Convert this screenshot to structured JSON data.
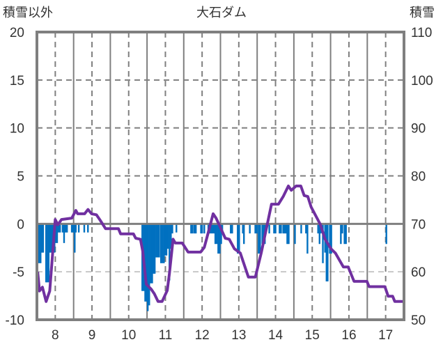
{
  "chart_data": {
    "type": "bar+line",
    "title": "大石ダム",
    "ylabel_left": "積雪以外",
    "ylabel_right": "積雪",
    "xlim": [
      7.5,
      17.5
    ],
    "x_ticks": [
      "8",
      "9",
      "10",
      "11",
      "12",
      "13",
      "14",
      "15",
      "16",
      "17"
    ],
    "x_tick_values": [
      8,
      9,
      10,
      11,
      12,
      13,
      14,
      15,
      16,
      17
    ],
    "ylim_left": [
      -10,
      20
    ],
    "y_ticks_left": [
      "20",
      "15",
      "10",
      "5",
      "0",
      "-5",
      "-10"
    ],
    "y_tick_values_left": [
      20,
      15,
      10,
      5,
      0,
      -5,
      -10
    ],
    "ylim_right": [
      50,
      110
    ],
    "y_ticks_right": [
      "110",
      "100",
      "90",
      "80",
      "70",
      "60",
      "50"
    ],
    "y_tick_values_right": [
      110,
      100,
      90,
      80,
      70,
      60,
      50
    ],
    "grid": true,
    "colors": {
      "bars": "#0070c0",
      "line": "#7030a0",
      "frame": "#7f7f7f"
    },
    "series": [
      {
        "name": "積雪以外",
        "type": "bar",
        "axis": "left",
        "points": [
          [
            7.52,
            -3
          ],
          [
            7.56,
            -4.1
          ],
          [
            7.6,
            -4.1
          ],
          [
            7.63,
            -3
          ],
          [
            7.67,
            -3
          ],
          [
            7.75,
            -6.1
          ],
          [
            7.78,
            -6.1
          ],
          [
            7.82,
            -6.1
          ],
          [
            7.86,
            -3
          ],
          [
            7.9,
            -3
          ],
          [
            7.94,
            -3
          ],
          [
            7.98,
            -3
          ],
          [
            8.01,
            -2
          ],
          [
            8.05,
            -2
          ],
          [
            8.09,
            -0.9
          ],
          [
            8.13,
            -0.9
          ],
          [
            8.2,
            -0.9
          ],
          [
            8.24,
            -2
          ],
          [
            8.28,
            -0.9
          ],
          [
            8.32,
            -0.9
          ],
          [
            8.45,
            -0.9
          ],
          [
            8.49,
            -0.9
          ],
          [
            8.53,
            -3
          ],
          [
            8.56,
            -0.9
          ],
          [
            8.64,
            -0.9
          ],
          [
            8.79,
            -0.9
          ],
          [
            8.89,
            -0.9
          ],
          [
            10.37,
            -7
          ],
          [
            10.41,
            -7
          ],
          [
            10.45,
            -8.1
          ],
          [
            10.48,
            -8.1
          ],
          [
            10.52,
            -9.1
          ],
          [
            10.56,
            -8.5
          ],
          [
            10.6,
            -6.2
          ],
          [
            10.64,
            -6.2
          ],
          [
            10.67,
            -5.2
          ],
          [
            10.71,
            -5.2
          ],
          [
            10.75,
            -3.5
          ],
          [
            10.79,
            -3.5
          ],
          [
            10.83,
            -3.5
          ],
          [
            10.88,
            -4.1
          ],
          [
            10.92,
            -4.1
          ],
          [
            10.96,
            -4.1
          ],
          [
            11.0,
            -3.3
          ],
          [
            11.03,
            -3.3
          ],
          [
            11.07,
            -2.6
          ],
          [
            11.11,
            -5.9
          ],
          [
            11.15,
            -2.6
          ],
          [
            11.19,
            -1
          ],
          [
            11.3,
            -0.9
          ],
          [
            11.7,
            -1
          ],
          [
            11.74,
            -1
          ],
          [
            11.79,
            -1
          ],
          [
            11.83,
            -1
          ],
          [
            11.97,
            -1
          ],
          [
            12.0,
            -1
          ],
          [
            12.06,
            -1
          ],
          [
            12.17,
            -1
          ],
          [
            12.21,
            -1
          ],
          [
            12.25,
            -1
          ],
          [
            12.29,
            -1
          ],
          [
            12.33,
            -1
          ],
          [
            12.36,
            -2.1
          ],
          [
            12.4,
            -2.1
          ],
          [
            12.44,
            -3.1
          ],
          [
            12.48,
            -3.1
          ],
          [
            12.52,
            -2.1
          ],
          [
            12.55,
            -1
          ],
          [
            12.78,
            -1
          ],
          [
            12.82,
            -1
          ],
          [
            12.97,
            -3.1
          ],
          [
            13.01,
            -3.1
          ],
          [
            13.11,
            -1
          ],
          [
            13.14,
            -2.1
          ],
          [
            13.3,
            -1
          ],
          [
            13.45,
            -1
          ],
          [
            13.49,
            -1
          ],
          [
            13.54,
            -3.1
          ],
          [
            13.58,
            -3.1
          ],
          [
            13.64,
            -2.1
          ],
          [
            13.68,
            -2.1
          ],
          [
            13.71,
            -2.1
          ],
          [
            13.83,
            -1
          ],
          [
            13.96,
            -1
          ],
          [
            14.0,
            -1
          ],
          [
            14.11,
            -1
          ],
          [
            14.15,
            -1
          ],
          [
            14.21,
            -1
          ],
          [
            14.25,
            -1
          ],
          [
            14.28,
            -1
          ],
          [
            14.32,
            -2.1
          ],
          [
            14.36,
            -2.1
          ],
          [
            14.53,
            -2.1
          ],
          [
            14.7,
            -1
          ],
          [
            14.83,
            -1
          ],
          [
            14.87,
            -3.1
          ],
          [
            15.16,
            -1
          ],
          [
            15.2,
            -2.1
          ],
          [
            15.23,
            -1
          ],
          [
            15.29,
            -4.1
          ],
          [
            15.35,
            -3
          ],
          [
            15.39,
            -6
          ],
          [
            15.42,
            -6
          ],
          [
            15.48,
            -3.1
          ],
          [
            15.52,
            -3.1
          ],
          [
            15.78,
            -2.1
          ],
          [
            15.82,
            -1
          ],
          [
            15.88,
            -2.1
          ],
          [
            15.92,
            -2.1
          ],
          [
            17.02,
            -2.1
          ]
        ]
      },
      {
        "name": "積雪",
        "type": "line",
        "axis": "right",
        "points": [
          [
            7.52,
            60
          ],
          [
            7.57,
            56
          ],
          [
            7.65,
            56.8
          ],
          [
            7.75,
            53.8
          ],
          [
            7.85,
            56
          ],
          [
            8.0,
            70.9
          ],
          [
            8.07,
            69.8
          ],
          [
            8.17,
            70.9
          ],
          [
            8.45,
            71.2
          ],
          [
            8.56,
            72.8
          ],
          [
            8.61,
            72.1
          ],
          [
            8.8,
            72.1
          ],
          [
            8.89,
            73
          ],
          [
            8.99,
            72.1
          ],
          [
            9.12,
            71.9
          ],
          [
            9.21,
            70.9
          ],
          [
            9.37,
            69
          ],
          [
            9.72,
            69
          ],
          [
            9.78,
            67.9
          ],
          [
            10.13,
            67.9
          ],
          [
            10.19,
            67
          ],
          [
            10.32,
            66.8
          ],
          [
            10.38,
            64.4
          ],
          [
            10.48,
            57.4
          ],
          [
            10.61,
            56.4
          ],
          [
            10.7,
            55.4
          ],
          [
            10.8,
            53.8
          ],
          [
            10.91,
            53.8
          ],
          [
            11.05,
            56.1
          ],
          [
            11.11,
            59.6
          ],
          [
            11.21,
            66.8
          ],
          [
            11.27,
            66
          ],
          [
            11.46,
            66
          ],
          [
            11.62,
            64.1
          ],
          [
            11.96,
            64.1
          ],
          [
            12.06,
            65.1
          ],
          [
            12.15,
            67.7
          ],
          [
            12.3,
            72.1
          ],
          [
            12.38,
            71.2
          ],
          [
            12.5,
            69.2
          ],
          [
            12.63,
            67
          ],
          [
            12.74,
            66.8
          ],
          [
            12.88,
            64.8
          ],
          [
            13.04,
            63.9
          ],
          [
            13.26,
            58.9
          ],
          [
            13.45,
            58.9
          ],
          [
            13.61,
            63.9
          ],
          [
            13.89,
            74.1
          ],
          [
            14.08,
            74.1
          ],
          [
            14.21,
            75.7
          ],
          [
            14.35,
            77.9
          ],
          [
            14.43,
            77
          ],
          [
            14.56,
            77.9
          ],
          [
            14.69,
            77.9
          ],
          [
            14.78,
            75.9
          ],
          [
            14.88,
            75.7
          ],
          [
            14.97,
            73.5
          ],
          [
            15.22,
            69.9
          ],
          [
            15.35,
            66.8
          ],
          [
            15.51,
            64.8
          ],
          [
            15.63,
            63.9
          ],
          [
            15.85,
            61
          ],
          [
            15.98,
            61
          ],
          [
            16.14,
            58
          ],
          [
            16.49,
            58
          ],
          [
            16.55,
            56.9
          ],
          [
            16.98,
            56.9
          ],
          [
            17.07,
            54.9
          ],
          [
            17.19,
            54.9
          ],
          [
            17.25,
            53.8
          ],
          [
            17.5,
            53.8
          ]
        ]
      }
    ]
  }
}
